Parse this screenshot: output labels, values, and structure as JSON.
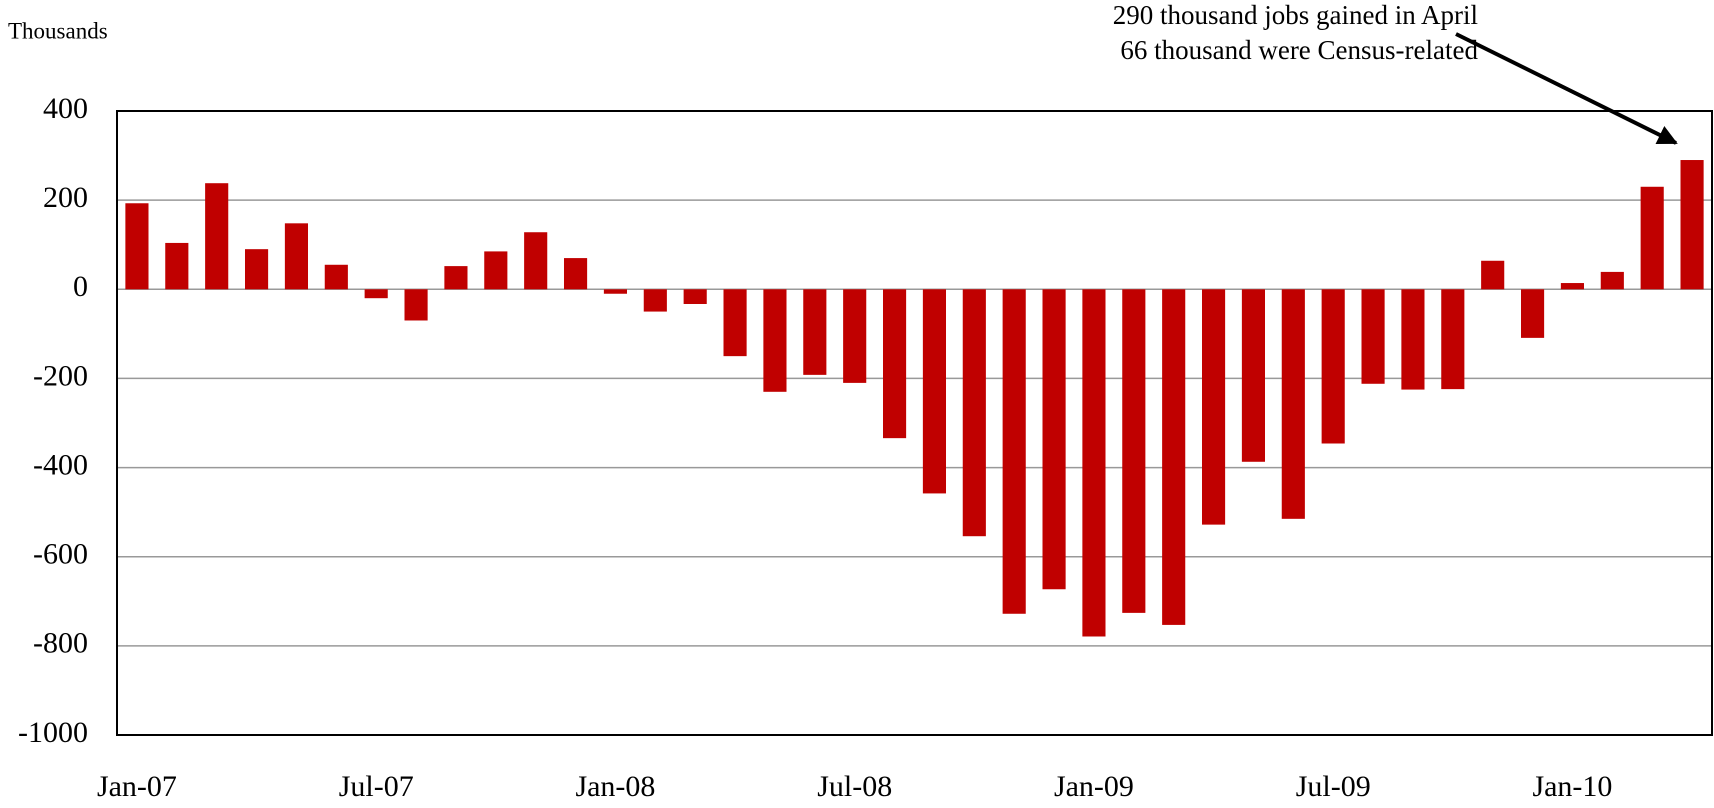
{
  "chart_data": {
    "type": "bar",
    "y_label": "Thousands",
    "annotation": [
      "290 thousand jobs gained in April",
      "66 thousand were Census-related"
    ],
    "categories": [
      "Jan-07",
      null,
      null,
      null,
      null,
      null,
      "Jul-07",
      null,
      null,
      null,
      null,
      null,
      "Jan-08",
      null,
      null,
      null,
      null,
      null,
      "Jul-08",
      null,
      null,
      null,
      null,
      null,
      "Jan-09",
      null,
      null,
      null,
      null,
      null,
      "Jul-09",
      null,
      null,
      null,
      null,
      null,
      "Jan-10",
      null,
      null,
      null
    ],
    "values": [
      193,
      104,
      238,
      90,
      148,
      55,
      -20,
      -70,
      52,
      85,
      128,
      70,
      -10,
      -50,
      -33,
      -150,
      -230,
      -192,
      -210,
      -334,
      -458,
      -554,
      -728,
      -673,
      -779,
      -726,
      -753,
      -528,
      -387,
      -515,
      -346,
      -212,
      -225,
      -224,
      64,
      -109,
      14,
      39,
      230,
      290
    ],
    "color": "#c00000",
    "ylim": [
      -1000,
      400
    ],
    "yticks": [
      -1000,
      -800,
      -600,
      -400,
      -200,
      0,
      200,
      400
    ],
    "grid": true
  }
}
